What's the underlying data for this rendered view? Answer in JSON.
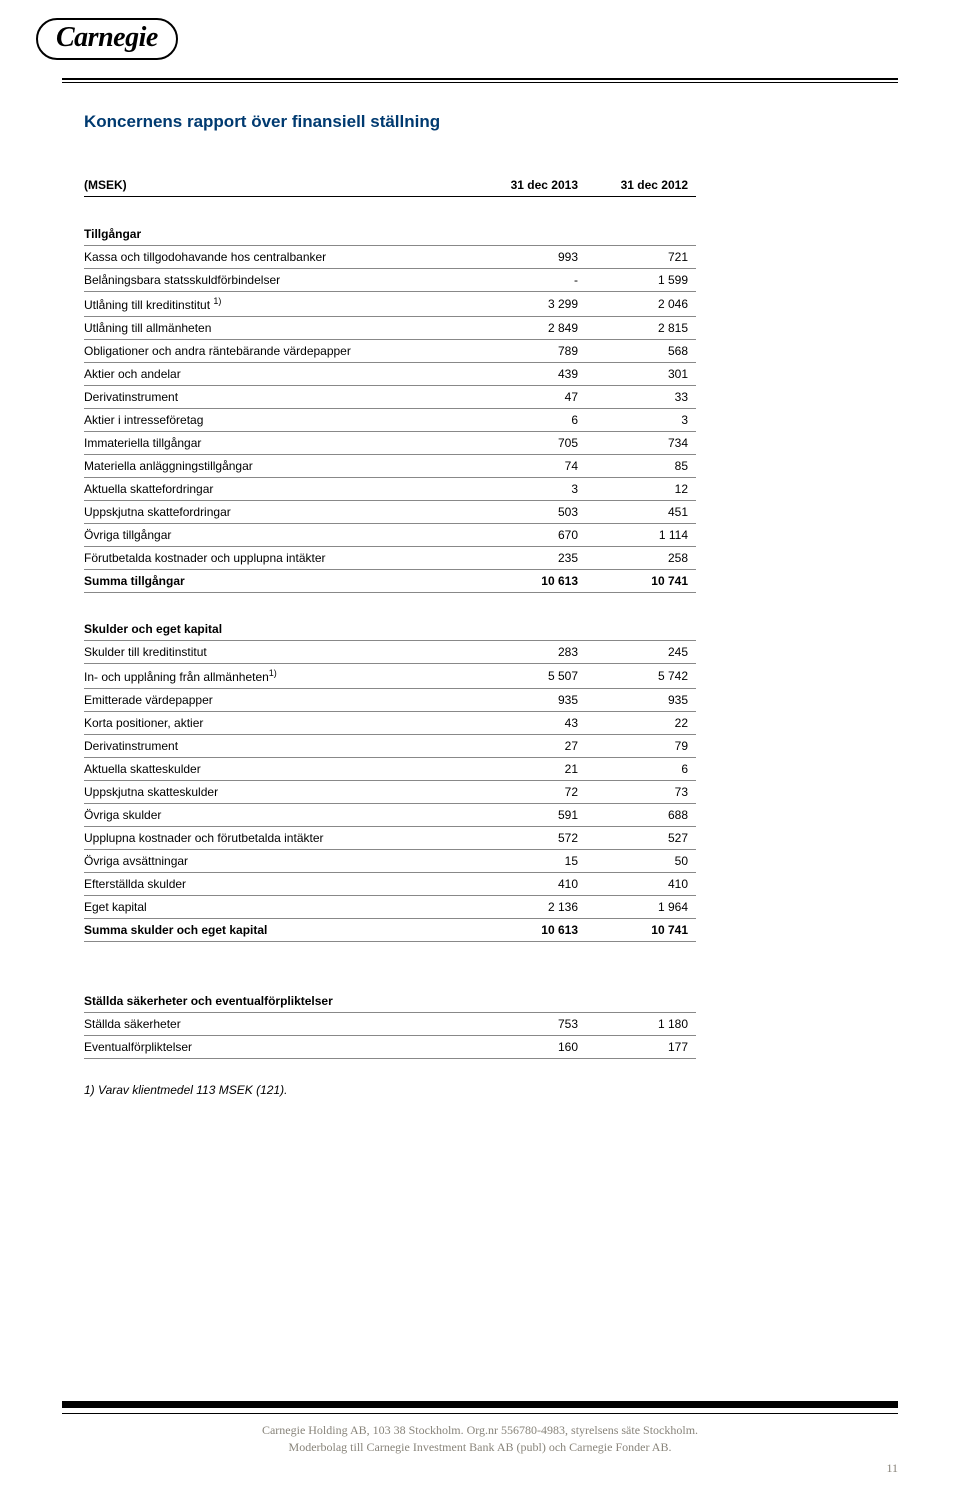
{
  "logo": "Carnegie",
  "title": "Koncernens rapport över finansiell ställning",
  "header": {
    "msek": "(MSEK)",
    "col1": "31 dec 2013",
    "col2": "31 dec 2012"
  },
  "assets": {
    "heading": "Tillgångar",
    "rows": [
      {
        "label": "Kassa och tillgodohavande hos centralbanker",
        "c1": "993",
        "c2": "721"
      },
      {
        "label": "Belåningsbara statsskuldförbindelser",
        "c1": "-",
        "c2": "1 599"
      },
      {
        "label": "Utlåning till kreditinstitut ",
        "sup": "1)",
        "c1": "3 299",
        "c2": "2 046"
      },
      {
        "label": "Utlåning till allmänheten",
        "c1": "2 849",
        "c2": "2 815"
      },
      {
        "label": "Obligationer och andra räntebärande värdepapper",
        "c1": "789",
        "c2": "568"
      },
      {
        "label": "Aktier och andelar",
        "c1": "439",
        "c2": "301"
      },
      {
        "label": "Derivatinstrument",
        "c1": "47",
        "c2": "33"
      },
      {
        "label": "Aktier i intresseföretag",
        "c1": "6",
        "c2": "3"
      },
      {
        "label": "Immateriella tillgångar",
        "c1": "705",
        "c2": "734"
      },
      {
        "label": "Materiella anläggningstillgångar",
        "c1": "74",
        "c2": "85"
      },
      {
        "label": "Aktuella skattefordringar",
        "c1": "3",
        "c2": "12"
      },
      {
        "label": "Uppskjutna skattefordringar",
        "c1": "503",
        "c2": "451"
      },
      {
        "label": "Övriga tillgångar",
        "c1": "670",
        "c2": "1 114"
      },
      {
        "label": "Förutbetalda kostnader och upplupna intäkter",
        "c1": "235",
        "c2": "258"
      }
    ],
    "sum": {
      "label": "Summa tillgångar",
      "c1": "10 613",
      "c2": "10 741"
    }
  },
  "liab": {
    "heading": "Skulder och eget kapital",
    "rows": [
      {
        "label": "Skulder till kreditinstitut",
        "c1": "283",
        "c2": "245"
      },
      {
        "label": "In- och upplåning från allmänheten",
        "sup": "1)",
        "c1": "5 507",
        "c2": "5 742"
      },
      {
        "label": "Emitterade värdepapper",
        "c1": "935",
        "c2": "935"
      },
      {
        "label": "Korta positioner, aktier",
        "c1": "43",
        "c2": "22"
      },
      {
        "label": "Derivatinstrument",
        "c1": "27",
        "c2": "79"
      },
      {
        "label": "Aktuella skatteskulder",
        "c1": "21",
        "c2": "6"
      },
      {
        "label": "Uppskjutna skatteskulder",
        "c1": "72",
        "c2": "73"
      },
      {
        "label": "Övriga skulder",
        "c1": "591",
        "c2": "688"
      },
      {
        "label": "Upplupna kostnader och förutbetalda intäkter",
        "c1": "572",
        "c2": "527"
      },
      {
        "label": "Övriga avsättningar",
        "c1": "15",
        "c2": "50"
      },
      {
        "label": "Efterställda skulder",
        "c1": "410",
        "c2": "410"
      },
      {
        "label": "Eget kapital",
        "c1": "2 136",
        "c2": "1 964"
      }
    ],
    "sum": {
      "label": "Summa skulder och eget kapital",
      "c1": "10 613",
      "c2": "10 741"
    }
  },
  "pledged": {
    "heading": "Ställda säkerheter och eventualförpliktelser",
    "rows": [
      {
        "label": "Ställda säkerheter",
        "c1": "753",
        "c2": "1 180"
      },
      {
        "label": "Eventualförpliktelser",
        "c1": "160",
        "c2": "177"
      }
    ]
  },
  "footnote": "1) Varav klientmedel 113 MSEK (121).",
  "footer": {
    "line1": "Carnegie Holding AB, 103 38 Stockholm. Org.nr 556780-4983, styrelsens säte Stockholm.",
    "line2": "Moderbolag till Carnegie Investment Bank AB (publ) och Carnegie Fonder AB."
  },
  "page_number": "11"
}
